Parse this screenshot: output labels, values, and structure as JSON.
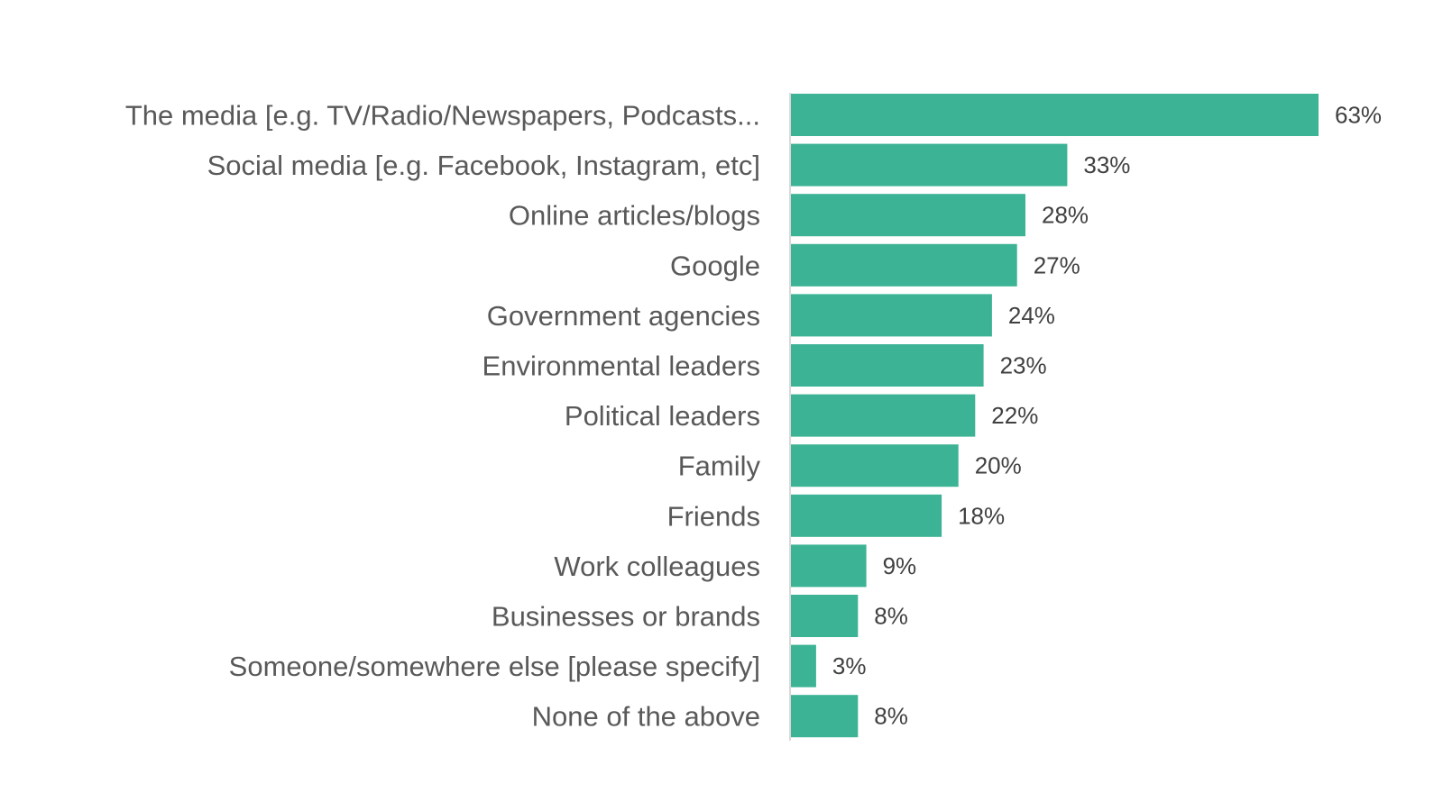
{
  "chart_data": {
    "type": "bar",
    "orientation": "horizontal",
    "categories": [
      "The media [e.g. TV/Radio/Newspapers, Podcasts...",
      "Social media [e.g. Facebook, Instagram, etc]",
      "Online articles/blogs",
      "Google",
      "Government agencies",
      "Environmental leaders",
      "Political leaders",
      "Family",
      "Friends",
      "Work colleagues",
      "Businesses or brands",
      "Someone/somewhere else [please specify]",
      "None of the above"
    ],
    "values": [
      63,
      33,
      28,
      27,
      24,
      23,
      22,
      20,
      18,
      9,
      8,
      3,
      8
    ],
    "value_labels": [
      "63%",
      "33%",
      "28%",
      "27%",
      "24%",
      "23%",
      "22%",
      "20%",
      "18%",
      "9%",
      "8%",
      "3%",
      "8%"
    ],
    "unit": "%",
    "xlim": [
      0,
      63
    ],
    "grid": false,
    "legend": "none",
    "bar_color": "#3bb394"
  }
}
